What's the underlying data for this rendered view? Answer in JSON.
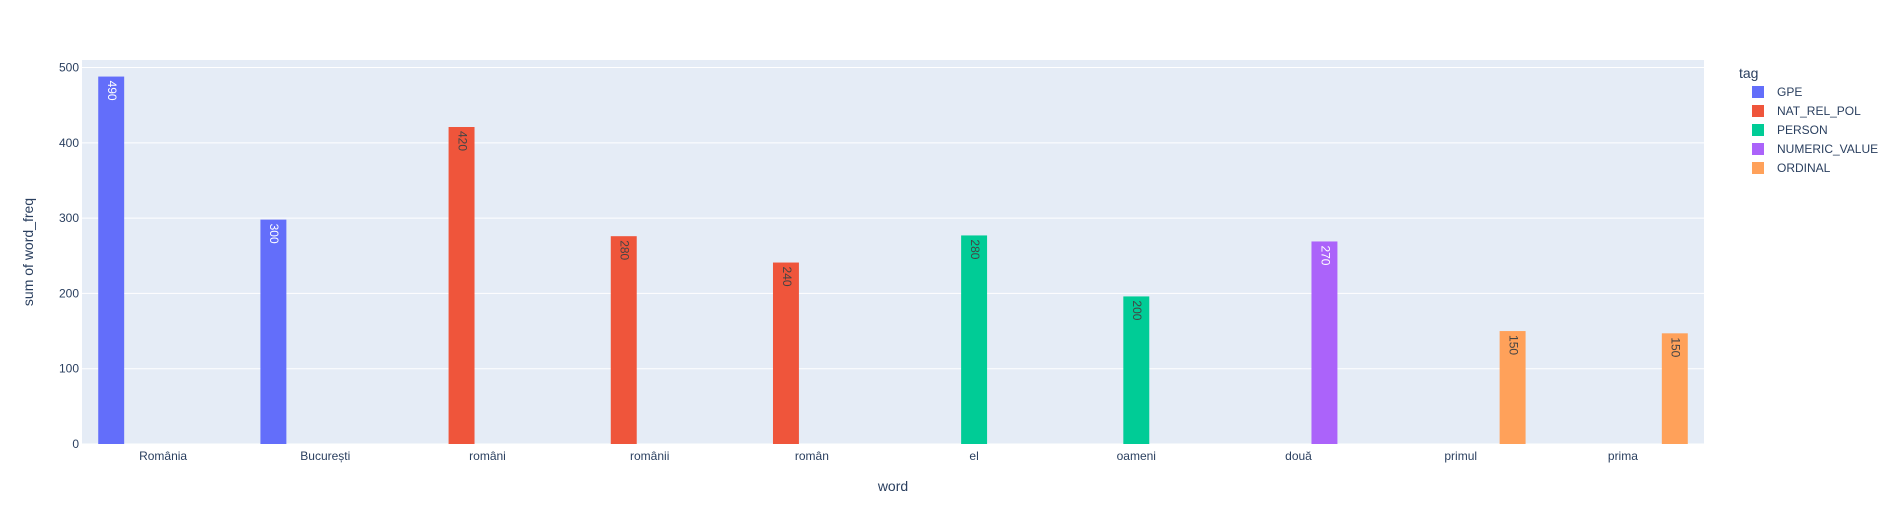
{
  "chart_data": {
    "type": "bar",
    "xlabel": "word",
    "ylabel": "sum of word_freq",
    "ylim": [
      0,
      510
    ],
    "yticks": [
      0,
      100,
      200,
      300,
      400,
      500
    ],
    "grid": true,
    "legend_placement": "right",
    "legend_title": "tag",
    "categories": [
      "România",
      "București",
      "români",
      "românii",
      "român",
      "el",
      "oameni",
      "două",
      "primul",
      "prima"
    ],
    "series": [
      {
        "name": "GPE",
        "color": "#636efa",
        "label_color": "#ffffff",
        "values": [
          490,
          300,
          null,
          null,
          null,
          null,
          null,
          null,
          null,
          null
        ]
      },
      {
        "name": "NAT_REL_POL",
        "color": "#ef553b",
        "label_color": "#444444",
        "values": [
          null,
          null,
          420,
          280,
          240,
          null,
          null,
          null,
          null,
          null
        ]
      },
      {
        "name": "PERSON",
        "color": "#00cc96",
        "label_color": "#444444",
        "values": [
          null,
          null,
          null,
          null,
          null,
          280,
          200,
          null,
          null,
          null
        ]
      },
      {
        "name": "NUMERIC_VALUE",
        "color": "#ab63fa",
        "label_color": "#ffffff",
        "values": [
          null,
          null,
          null,
          null,
          null,
          null,
          null,
          270,
          null,
          null
        ]
      },
      {
        "name": "ORDINAL",
        "color": "#ffa15a",
        "label_color": "#444444",
        "values": [
          null,
          null,
          null,
          null,
          null,
          null,
          null,
          null,
          150,
          150
        ]
      }
    ],
    "bar_heights": [
      488,
      298,
      421,
      276,
      241,
      277,
      196,
      269,
      150,
      147
    ],
    "colors": {
      "plot_bg": "#e5ecf6",
      "grid": "#ffffff",
      "text": "#2a3f5f"
    }
  }
}
